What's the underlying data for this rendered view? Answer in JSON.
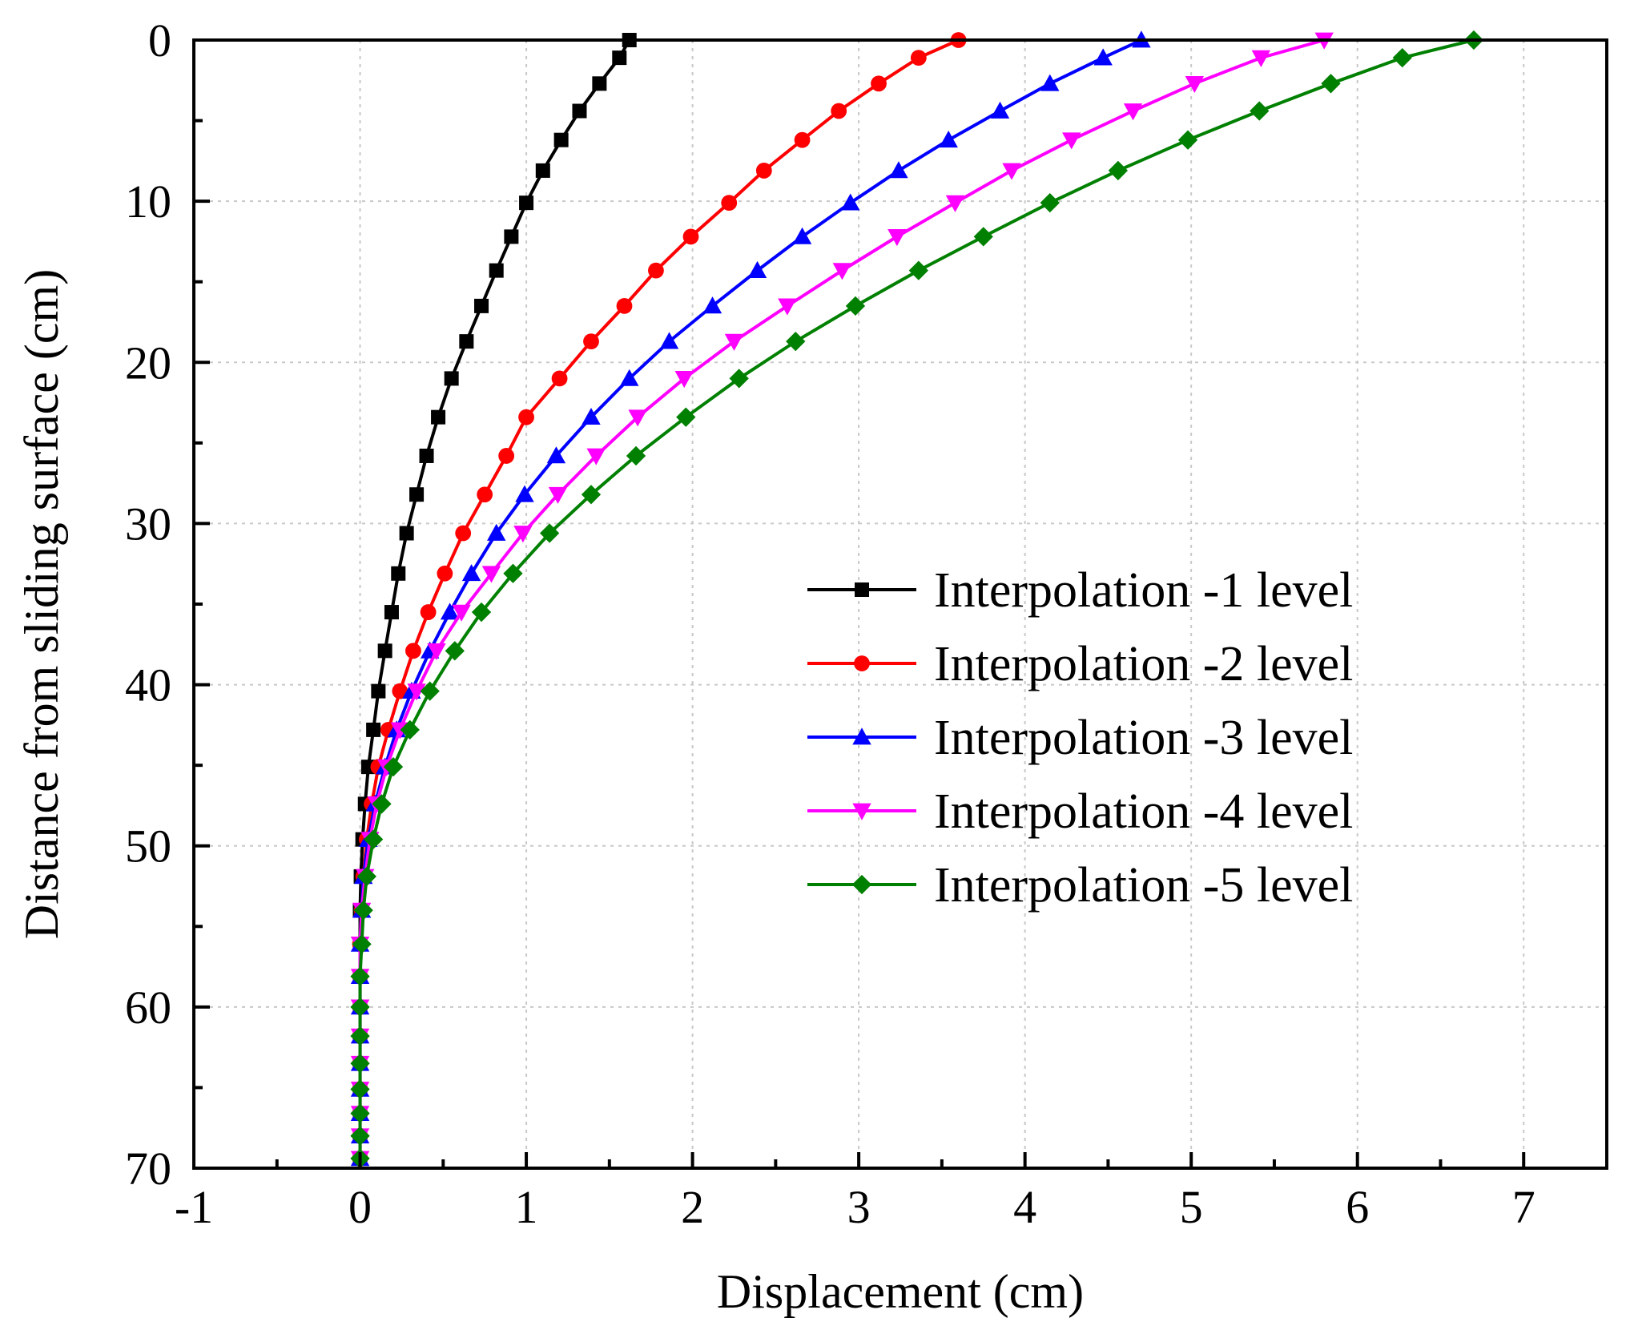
{
  "chart_data": {
    "type": "line",
    "title": "",
    "xlabel": "Displacement (cm)",
    "ylabel": "Distance from sliding surface (cm)",
    "xlim": [
      -1,
      7.5
    ],
    "ylim": [
      0,
      70
    ],
    "y_inverted": true,
    "grid": true,
    "legend_position": "center-right",
    "x_ticks": [
      -1,
      0,
      1,
      2,
      3,
      4,
      5,
      6,
      7
    ],
    "x_tick_labels": [
      "-1",
      "0",
      "1",
      "2",
      "3",
      "4",
      "5",
      "6",
      "7"
    ],
    "y_ticks": [
      0,
      10,
      20,
      30,
      40,
      50,
      60,
      70
    ],
    "y_tick_labels": [
      "0",
      "10",
      "20",
      "30",
      "40",
      "50",
      "60",
      "70"
    ],
    "series": [
      {
        "name": "Interpolation -1 level",
        "color": "#000000",
        "marker": "square",
        "y": [
          0,
          1.1,
          2.7,
          4.4,
          6.2,
          8.1,
          10.1,
          12.2,
          14.3,
          16.5,
          18.7,
          21,
          23.4,
          25.8,
          28.2,
          30.6,
          33.1,
          35.5,
          37.9,
          40.4,
          42.8,
          45.1,
          47.4,
          49.6,
          51.9,
          54.0,
          56.1,
          58.1,
          60.0,
          61.8,
          63.5,
          65.1,
          66.6,
          68.0,
          69.4
        ],
        "x": [
          1.62,
          1.56,
          1.44,
          1.32,
          1.21,
          1.1,
          1.0,
          0.91,
          0.82,
          0.73,
          0.64,
          0.55,
          0.47,
          0.4,
          0.34,
          0.28,
          0.23,
          0.19,
          0.15,
          0.11,
          0.08,
          0.05,
          0.03,
          0.015,
          0.005,
          0.0,
          0.0,
          0.0,
          0.0,
          0.0,
          0.0,
          0.0,
          0.0,
          0.0,
          0.0
        ]
      },
      {
        "name": "Interpolation -2 level",
        "color": "#ff0000",
        "marker": "circle",
        "y": [
          0,
          1.1,
          2.7,
          4.4,
          6.2,
          8.1,
          10.1,
          12.2,
          14.3,
          16.5,
          18.7,
          21,
          23.4,
          25.8,
          28.2,
          30.6,
          33.1,
          35.5,
          37.9,
          40.4,
          42.8,
          45.1,
          47.4,
          49.6,
          51.9,
          54.0,
          56.1,
          58.1,
          60.0,
          61.8,
          63.5,
          65.1,
          66.6,
          68.0,
          69.4
        ],
        "x": [
          3.6,
          3.36,
          3.12,
          2.88,
          2.66,
          2.43,
          2.22,
          1.99,
          1.78,
          1.59,
          1.39,
          1.2,
          1.0,
          0.88,
          0.75,
          0.62,
          0.51,
          0.41,
          0.32,
          0.24,
          0.17,
          0.11,
          0.07,
          0.04,
          0.02,
          0.01,
          0.0,
          0.0,
          0.0,
          0.0,
          0.0,
          0.0,
          0.0,
          0.0,
          0.0
        ]
      },
      {
        "name": "Interpolation -3 level",
        "color": "#0000ff",
        "marker": "triangle-up",
        "y": [
          0,
          1.1,
          2.7,
          4.4,
          6.2,
          8.1,
          10.1,
          12.2,
          14.3,
          16.5,
          18.7,
          21,
          23.4,
          25.8,
          28.2,
          30.6,
          33.1,
          35.5,
          37.9,
          40.4,
          42.8,
          45.1,
          47.4,
          49.6,
          51.9,
          54.0,
          56.1,
          58.1,
          60.0,
          61.8,
          63.5,
          65.1,
          66.6,
          68.0,
          69.4
        ],
        "x": [
          4.7,
          4.47,
          4.15,
          3.85,
          3.54,
          3.24,
          2.95,
          2.66,
          2.39,
          2.12,
          1.86,
          1.62,
          1.39,
          1.18,
          0.99,
          0.82,
          0.67,
          0.54,
          0.42,
          0.31,
          0.22,
          0.15,
          0.09,
          0.05,
          0.02,
          0.01,
          0.0,
          0.0,
          0.0,
          0.0,
          0.0,
          0.0,
          0.0,
          0.0,
          0.0
        ]
      },
      {
        "name": "Interpolation -4 level",
        "color": "#ff00ff",
        "marker": "triangle-down",
        "y": [
          0,
          1.1,
          2.7,
          4.4,
          6.2,
          8.1,
          10.1,
          12.2,
          14.3,
          16.5,
          18.7,
          21,
          23.4,
          25.8,
          28.2,
          30.6,
          33.1,
          35.5,
          37.9,
          40.4,
          42.8,
          45.1,
          47.4,
          49.6,
          51.9,
          54.0,
          56.1,
          58.1,
          60.0,
          61.8,
          63.5,
          65.1,
          66.6,
          68.0,
          69.4
        ],
        "x": [
          5.8,
          5.42,
          5.02,
          4.65,
          4.28,
          3.92,
          3.58,
          3.23,
          2.9,
          2.57,
          2.25,
          1.95,
          1.67,
          1.42,
          1.19,
          0.98,
          0.79,
          0.61,
          0.46,
          0.34,
          0.24,
          0.16,
          0.1,
          0.06,
          0.03,
          0.01,
          0.0,
          0.0,
          0.0,
          0.0,
          0.0,
          0.0,
          0.0,
          0.0,
          0.0
        ]
      },
      {
        "name": "Interpolation -5 level",
        "color": "#008000",
        "marker": "diamond",
        "y": [
          0,
          1.1,
          2.7,
          4.4,
          6.2,
          8.1,
          10.1,
          12.2,
          14.3,
          16.5,
          18.7,
          21,
          23.4,
          25.8,
          28.2,
          30.6,
          33.1,
          35.5,
          37.9,
          40.4,
          42.8,
          45.1,
          47.4,
          49.6,
          51.9,
          54.0,
          56.1,
          58.1,
          60.0,
          61.8,
          63.5,
          65.1,
          66.6,
          68.0,
          69.4
        ],
        "x": [
          6.7,
          6.27,
          5.84,
          5.41,
          4.98,
          4.56,
          4.15,
          3.75,
          3.36,
          2.98,
          2.62,
          2.28,
          1.96,
          1.66,
          1.39,
          1.14,
          0.92,
          0.73,
          0.57,
          0.42,
          0.3,
          0.2,
          0.13,
          0.08,
          0.04,
          0.02,
          0.01,
          0.0,
          0.0,
          0.0,
          0.0,
          0.0,
          0.0,
          0.0,
          0.0
        ]
      }
    ]
  }
}
